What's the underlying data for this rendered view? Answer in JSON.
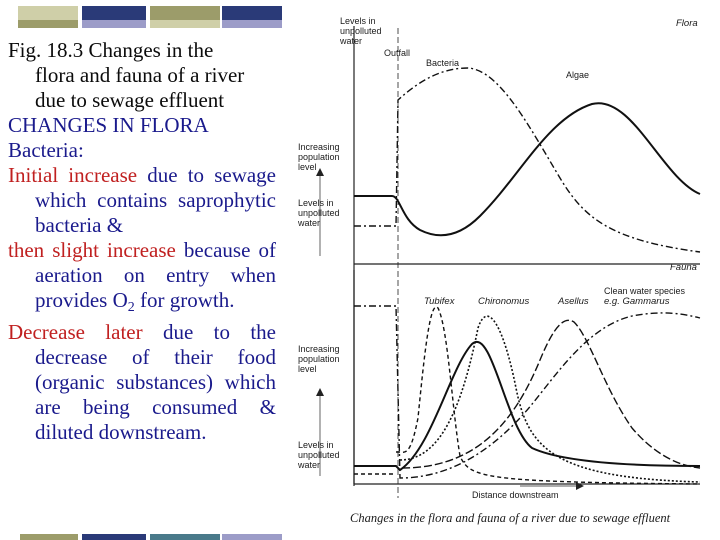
{
  "slide": {
    "title_lines": [
      "Fig. 18.3 Changes in the",
      "flora and fauna of a river",
      "due to sewage effluent"
    ],
    "heading": "CHANGES IN FLORA",
    "subheading": "Bacteria:",
    "para1_highlight": "Initial increase",
    "para1_rest": " due to sewage which contains saprophytic bacteria &",
    "para2_highlight": "then slight increase",
    "para2_rest": " because of aeration on entry when provides O",
    "para2_sub": "2",
    "para2_end": " for growth.",
    "para3_highlight": "Decrease later",
    "para3_rest": " due to the decrease of their food (organic substances) which are being consumed & diluted downstream."
  },
  "figure": {
    "top_left_label": [
      "Levels in",
      "unpolluted",
      "water"
    ],
    "outfall_label": "Outfall",
    "flora_tag": "Flora",
    "fauna_tag": "Fauna",
    "flora_curves": {
      "bacteria": "Bacteria",
      "algae": "Algae"
    },
    "fauna_curves": {
      "tubifex": "Tubifex",
      "chironomus": "Chironomus",
      "asellus": "Asellus",
      "clean_water": [
        "Clean water species",
        "e.g. Gammarus"
      ]
    },
    "y_label": [
      "Increasing",
      "population",
      "level"
    ],
    "levels_label": [
      "Levels in",
      "unpolluted",
      "water"
    ],
    "x_label": "Distance downstream",
    "caption": "Changes in the flora and fauna of a river due to sewage effluent"
  },
  "colors": {
    "deco_olive": "#9c9c6a",
    "deco_navy": "#2a3a78",
    "deco_lilac": "#9c9cc8",
    "deco_teal": "#4a7a8a"
  }
}
